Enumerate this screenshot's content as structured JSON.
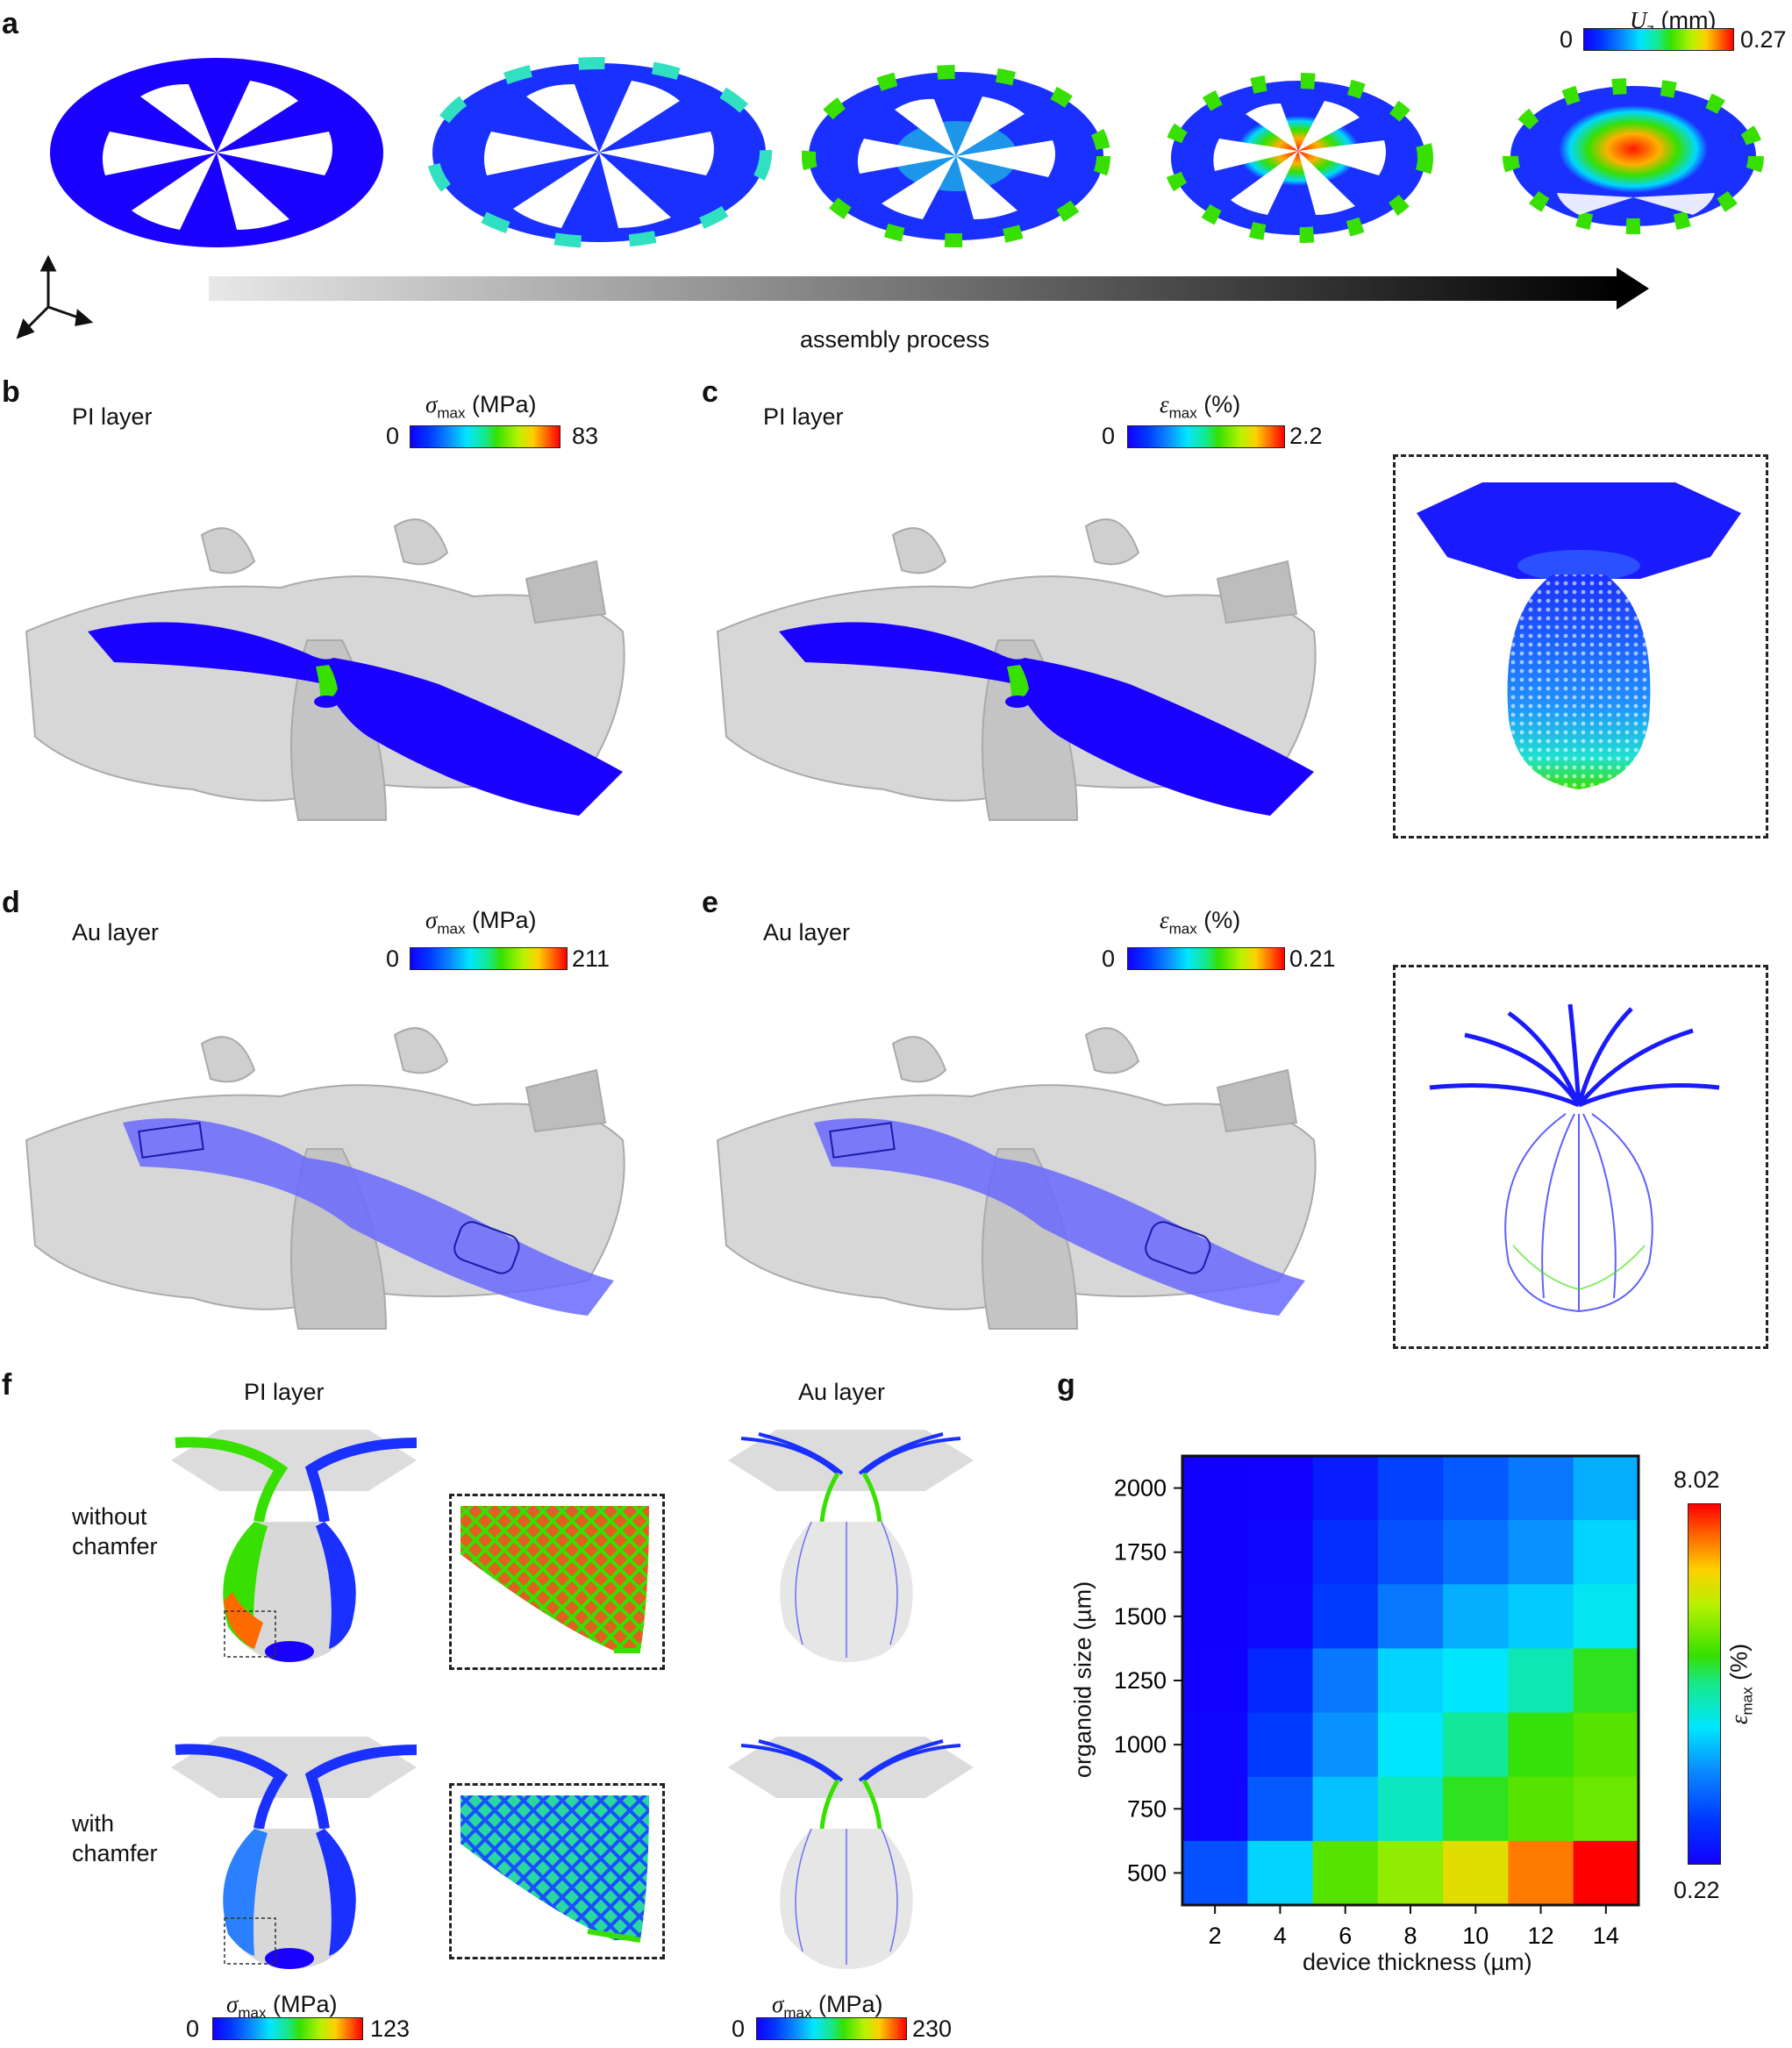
{
  "panels": {
    "a": "a",
    "b": "b",
    "c": "c",
    "d": "d",
    "e": "e",
    "f": "f",
    "g": "g"
  },
  "panel_a": {
    "colorbar": {
      "symbol": "U",
      "subscript": "z",
      "unit": "(mm)",
      "min": "0",
      "max": "0.27"
    },
    "arrow_label": "assembly process"
  },
  "panel_b": {
    "layer": "PI layer",
    "colorbar": {
      "symbol": "σ",
      "subscript": "max",
      "unit": "(MPa)",
      "min": "0",
      "max": "83"
    }
  },
  "panel_c": {
    "layer": "PI layer",
    "colorbar": {
      "symbol": "ε",
      "subscript": "max",
      "unit": "(%)",
      "min": "0",
      "max": "2.2"
    }
  },
  "panel_d": {
    "layer": "Au layer",
    "colorbar": {
      "symbol": "σ",
      "subscript": "max",
      "unit": "(MPa)",
      "min": "0",
      "max": "211"
    }
  },
  "panel_e": {
    "layer": "Au layer",
    "colorbar": {
      "symbol": "ε",
      "subscript": "max",
      "unit": "(%)",
      "min": "0",
      "max": "0.21"
    }
  },
  "panel_f": {
    "col_left": "PI layer",
    "col_right": "Au layer",
    "row_top": [
      "without",
      "chamfer"
    ],
    "row_bottom": [
      "with",
      "chamfer"
    ],
    "colorbar_left": {
      "symbol": "σ",
      "subscript": "max",
      "unit": "(MPa)",
      "min": "0",
      "max": "123"
    },
    "colorbar_right": {
      "symbol": "σ",
      "subscript": "max",
      "unit": "(MPa)",
      "min": "0",
      "max": "230"
    }
  },
  "colors": {
    "low": "#1200ff",
    "mid": "#00e6ff",
    "green": "#37e000",
    "high": "#ff0000",
    "gray": "#d9d9d9"
  },
  "chart_data": {
    "type": "heatmap",
    "xlabel": "device thickness (µm)",
    "ylabel": "organoid size (µm)",
    "x": [
      2,
      4,
      6,
      8,
      10,
      12,
      14
    ],
    "y": [
      2000,
      1750,
      1500,
      1250,
      1000,
      750,
      500
    ],
    "x_tick_labels": [
      "2",
      "4",
      "6",
      "8",
      "10",
      "12",
      "14"
    ],
    "y_tick_labels": [
      "2000",
      "1750",
      "1500",
      "1250",
      "1000",
      "750",
      "500"
    ],
    "colorbar": {
      "symbol": "ε",
      "subscript": "max",
      "unit": "(%)",
      "min": "0.22",
      "max": "8.02",
      "min_value": 0.22,
      "max_value": 8.02
    },
    "values": [
      [
        0.22,
        0.25,
        0.7,
        1.3,
        1.6,
        2.0,
        2.6
      ],
      [
        0.22,
        0.3,
        1.0,
        1.5,
        1.9,
        2.3,
        3.0
      ],
      [
        0.22,
        0.4,
        1.2,
        2.0,
        2.6,
        2.9,
        3.3
      ],
      [
        0.25,
        0.9,
        2.0,
        3.0,
        3.2,
        3.8,
        4.6
      ],
      [
        0.3,
        1.2,
        2.3,
        3.2,
        4.0,
        4.7,
        5.0
      ],
      [
        0.3,
        1.6,
        2.8,
        3.7,
        4.6,
        5.0,
        5.2
      ],
      [
        1.5,
        3.0,
        5.0,
        5.5,
        6.3,
        7.2,
        8.02
      ]
    ]
  }
}
